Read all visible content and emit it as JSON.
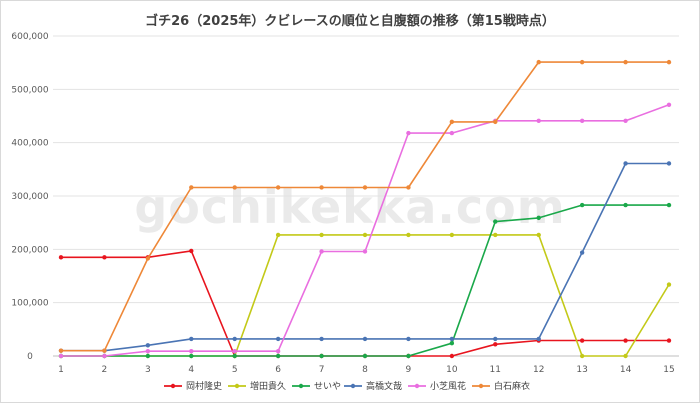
{
  "chart_data": {
    "type": "line",
    "title": "ゴチ26（2025年）クビレースの順位と自腹額の推移（第15戦時点）",
    "watermark": "gochikekka.com",
    "xlabel": "",
    "ylabel": "",
    "x": [
      1,
      2,
      3,
      4,
      5,
      6,
      7,
      8,
      9,
      10,
      11,
      12,
      13,
      14,
      15
    ],
    "ylim": [
      0,
      600000
    ],
    "yticks": [
      "0",
      "100,000",
      "200,000",
      "300,000",
      "400,000",
      "500,000",
      "600,000"
    ],
    "yticks_values": [
      0,
      100000,
      200000,
      300000,
      400000,
      500000,
      600000
    ],
    "grid": true,
    "legend_position": "bottom",
    "series": [
      {
        "name": "岡村隆史",
        "color": "#e8141e",
        "values": [
          185000,
          185000,
          185000,
          197000,
          0,
          0,
          0,
          0,
          0,
          0,
          22000,
          29000,
          29000,
          29000,
          29000
        ]
      },
      {
        "name": "増田貴久",
        "color": "#c3c918",
        "values": [
          0,
          0,
          0,
          0,
          0,
          227000,
          227000,
          227000,
          227000,
          227000,
          227000,
          227000,
          0,
          0,
          134000
        ]
      },
      {
        "name": "せいや",
        "color": "#1aa84a",
        "values": [
          0,
          0,
          0,
          0,
          0,
          0,
          0,
          0,
          0,
          24000,
          252000,
          259000,
          283000,
          283000,
          283000
        ]
      },
      {
        "name": "高橋文哉",
        "color": "#4a74b4",
        "values": [
          10000,
          10000,
          20000,
          32000,
          32000,
          32000,
          32000,
          32000,
          32000,
          32000,
          32000,
          32000,
          194000,
          361000,
          361000
        ]
      },
      {
        "name": "小芝風花",
        "color": "#e96ee0",
        "values": [
          0,
          0,
          9000,
          9000,
          9000,
          9000,
          196000,
          196000,
          418000,
          418000,
          441000,
          441000,
          441000,
          441000,
          471000
        ]
      },
      {
        "name": "白石麻衣",
        "color": "#ee8838",
        "values": [
          10000,
          10000,
          183000,
          316000,
          316000,
          316000,
          316000,
          316000,
          316000,
          439000,
          439000,
          551000,
          551000,
          551000,
          551000
        ]
      }
    ]
  }
}
